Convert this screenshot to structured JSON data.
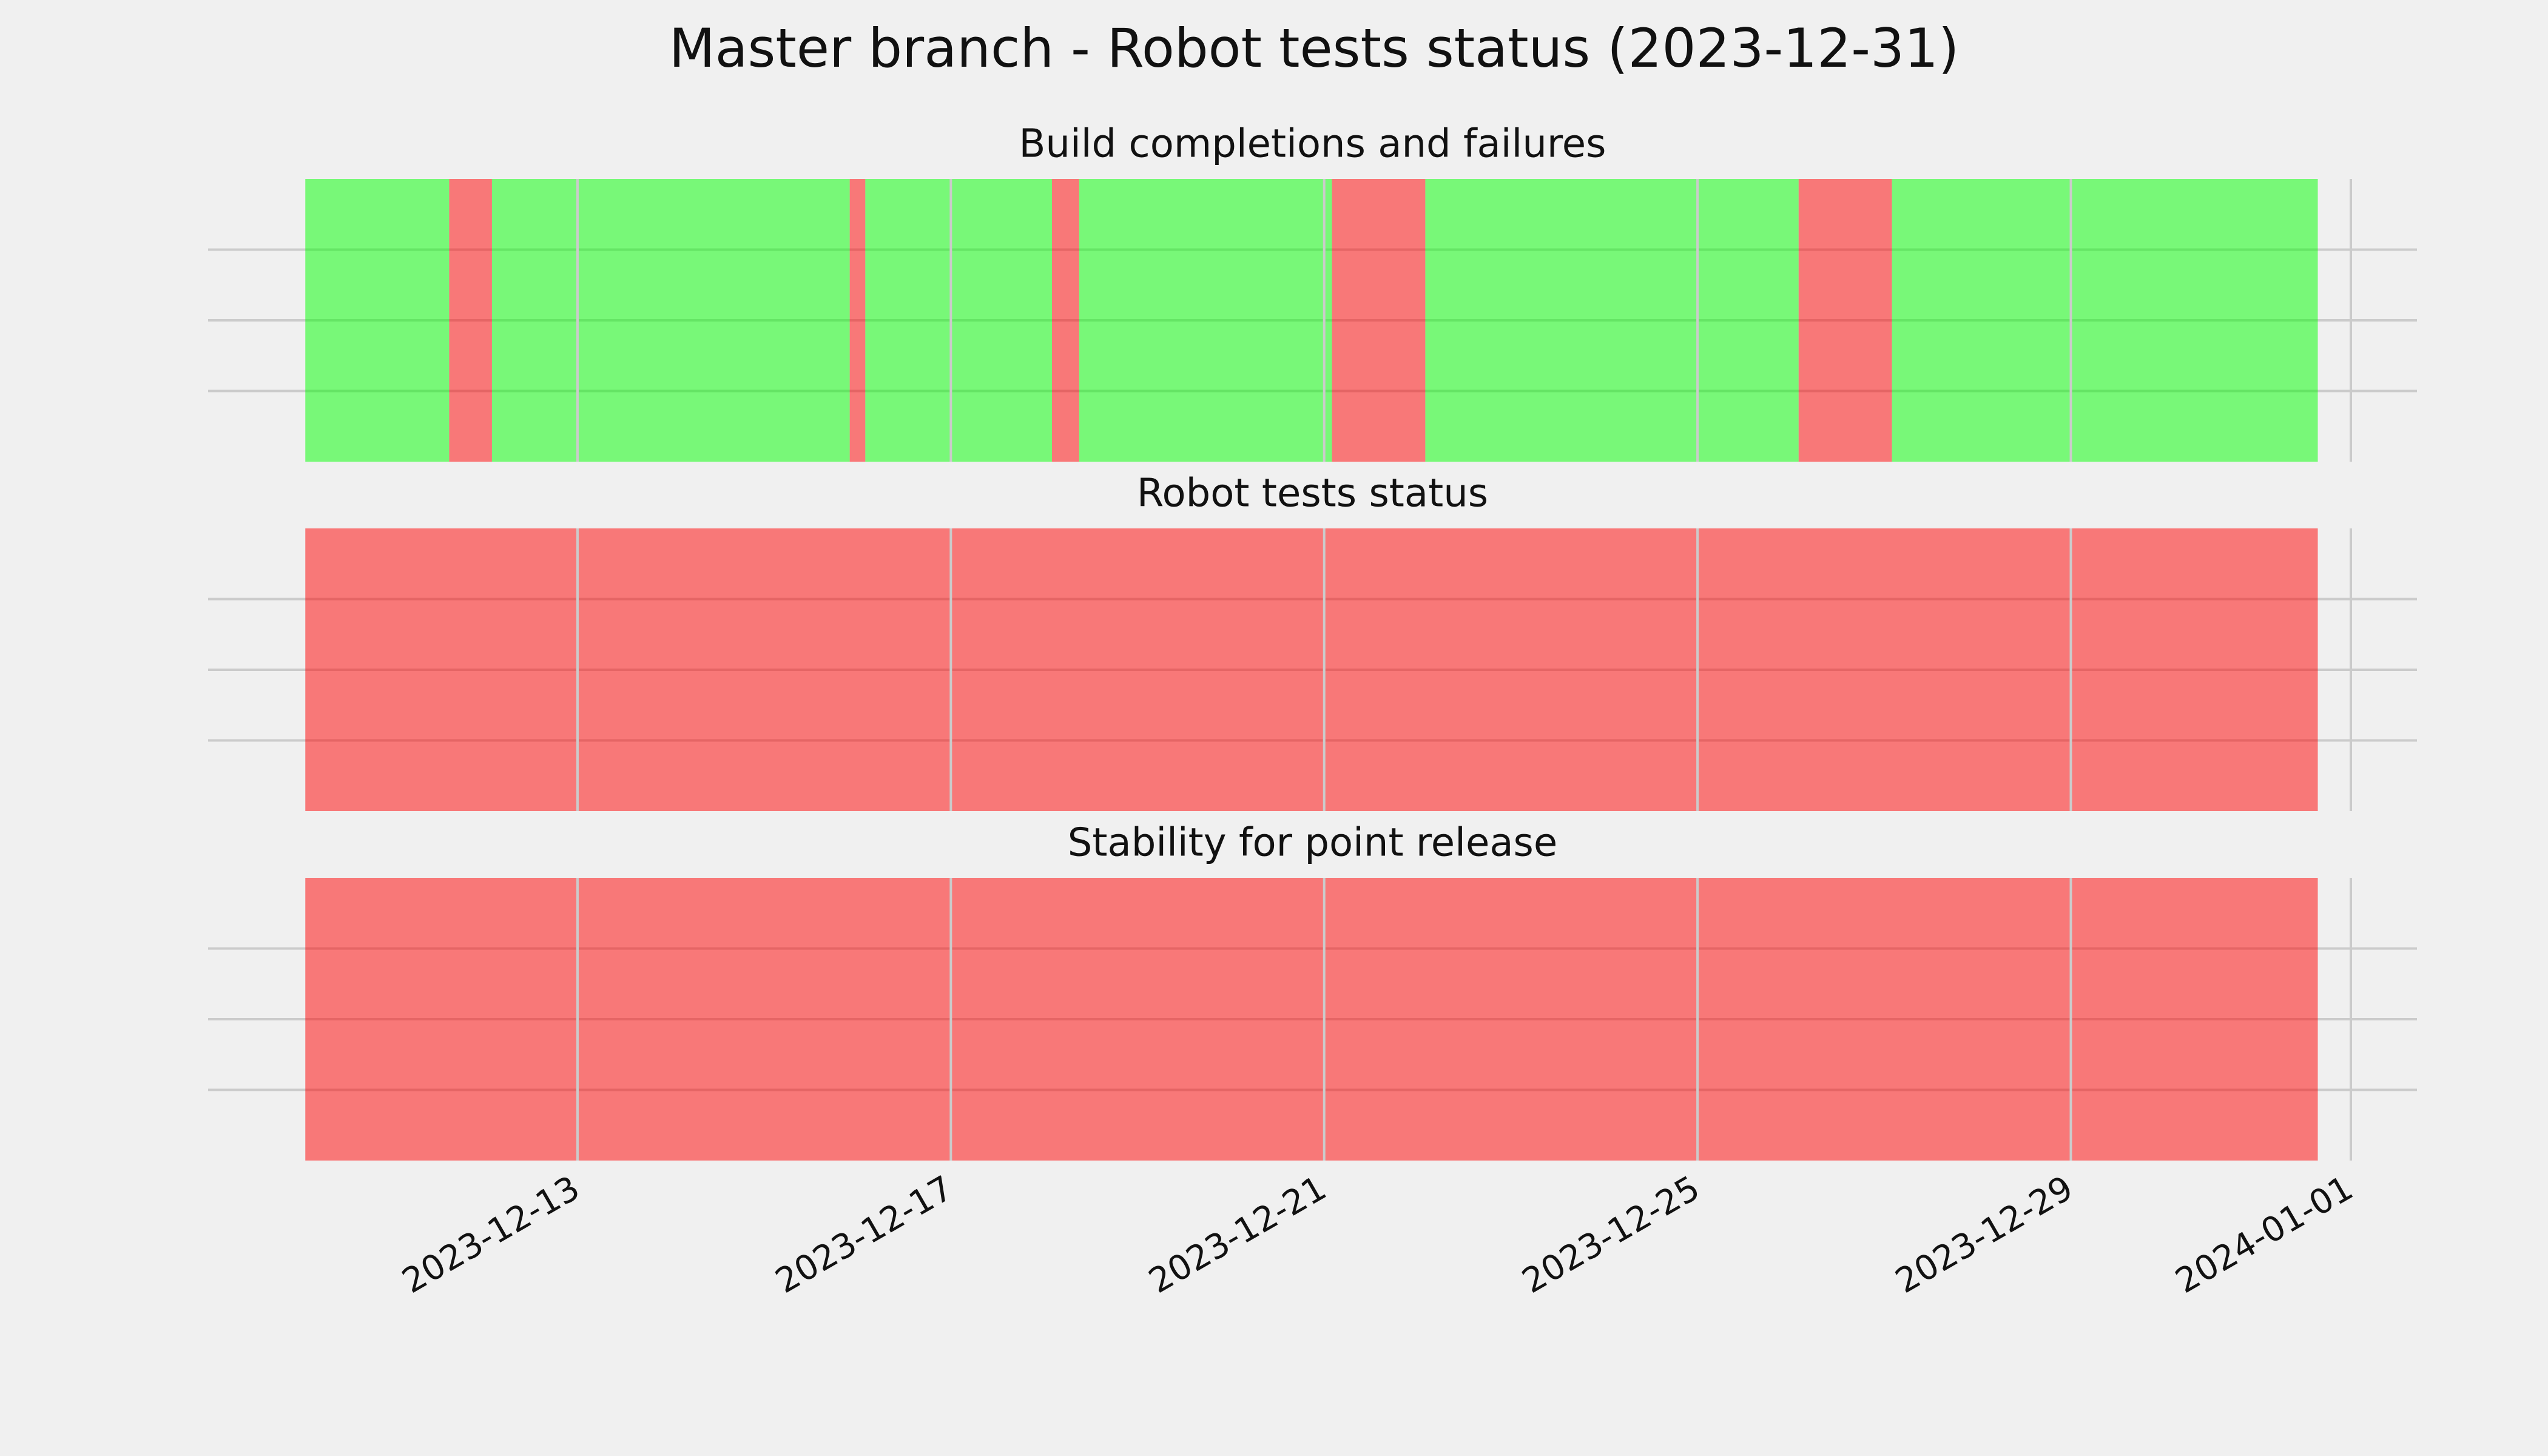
{
  "title": "Master branch - Robot tests status (2023-12-31)",
  "chart_data": [
    {
      "type": "timeline",
      "title": "Build completions and failures",
      "x": [
        "2023-12-10T02:00",
        "2023-12-11T15:00",
        "2023-12-12T02:00",
        "2023-12-15T22:00",
        "2023-12-16T02:00",
        "2023-12-18T02:00",
        "2023-12-18T09:00",
        "2023-12-21T02:00",
        "2023-12-22T02:00",
        "2023-12-26T02:00",
        "2023-12-27T02:00",
        "2023-12-31T15:30"
      ],
      "colors": [
        "#00ff00",
        "#ff0000",
        "#00ff00",
        "#ff0000",
        "#00ff00",
        "#ff0000",
        "#00ff00",
        "#ff0000",
        "#00ff00",
        "#ff0000",
        "#00ff00"
      ],
      "xlim": [
        "2023-12-09T01:00",
        "2024-01-01T17:00"
      ],
      "xticks": [
        "2023-12-13",
        "2023-12-17",
        "2023-12-21",
        "2023-12-25",
        "2023-12-29",
        "2024-01-01"
      ],
      "ylim": [
        0,
        1
      ],
      "yticks": [
        0.25,
        0.5,
        0.75
      ],
      "grid": true
    },
    {
      "type": "timeline",
      "title": "Robot tests status",
      "x": [
        "2023-12-10T02:00",
        "2023-12-31T15:30"
      ],
      "colors": [
        "#ff0000"
      ],
      "xlim": [
        "2023-12-09T01:00",
        "2024-01-01T17:00"
      ],
      "xticks": [
        "2023-12-13",
        "2023-12-17",
        "2023-12-21",
        "2023-12-25",
        "2023-12-29",
        "2024-01-01"
      ],
      "ylim": [
        0,
        1
      ],
      "yticks": [
        0.25,
        0.5,
        0.75
      ],
      "grid": true
    },
    {
      "type": "timeline",
      "title": "Stability for point release",
      "x": [
        "2023-12-10T02:00",
        "2023-12-31T15:30"
      ],
      "colors": [
        "#ff0000"
      ],
      "xlim": [
        "2023-12-09T01:00",
        "2024-01-01T17:00"
      ],
      "xticks": [
        "2023-12-13",
        "2023-12-17",
        "2023-12-21",
        "2023-12-25",
        "2023-12-29",
        "2024-01-01"
      ],
      "ylim": [
        0,
        1
      ],
      "yticks": [
        0.25,
        0.5,
        0.75
      ],
      "grid": true
    }
  ]
}
